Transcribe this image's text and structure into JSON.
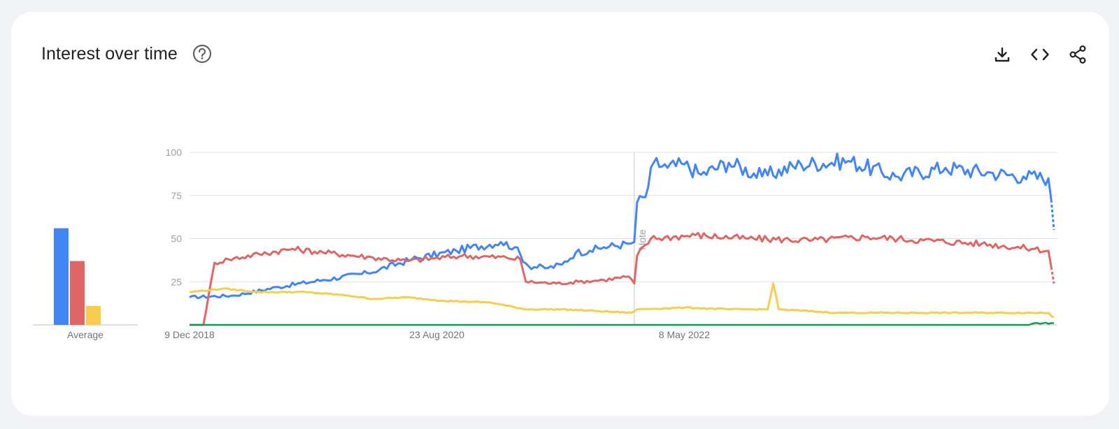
{
  "card": {
    "title": "Interest over time",
    "icons": [
      "help-icon",
      "download-icon",
      "embed-icon",
      "share-icon"
    ]
  },
  "chart_data": {
    "type": "line",
    "title": "Interest over time",
    "ylim": [
      0,
      100
    ],
    "yticks": [
      25,
      50,
      75,
      100
    ],
    "xlim": [
      "2018-12-09",
      "2024-12-01"
    ],
    "xtick_labels": [
      "9 Dec 2018",
      "23 Aug 2020",
      "8 May 2022"
    ],
    "xtick_dates": [
      "2018-12-09",
      "2020-08-23",
      "2022-05-08"
    ],
    "grid": true,
    "note": {
      "label": "Note",
      "date": "2022-01-02"
    },
    "partial_from": "2024-11-17",
    "colors": [
      "#4285f4",
      "#e06666",
      "#f6cd4f",
      "#0f9d58"
    ],
    "series": [
      {
        "color": "#4285f4",
        "points": [
          [
            "2018-12-09",
            16
          ],
          [
            "2019-03-31",
            17
          ],
          [
            "2019-07-21",
            22
          ],
          [
            "2019-11-10",
            26
          ],
          [
            "2020-03-01",
            30
          ],
          [
            "2020-06-21",
            38
          ],
          [
            "2020-10-11",
            43
          ],
          [
            "2021-01-31",
            48
          ],
          [
            "2021-03-07",
            45
          ],
          [
            "2021-04-11",
            34
          ],
          [
            "2021-05-30",
            33
          ],
          [
            "2021-07-04",
            35
          ],
          [
            "2021-08-08",
            42
          ],
          [
            "2021-09-12",
            43
          ],
          [
            "2021-10-17",
            45
          ],
          [
            "2021-12-19",
            47
          ],
          [
            "2022-01-02",
            48
          ],
          [
            "2022-01-09",
            71
          ],
          [
            "2022-01-30",
            74
          ],
          [
            "2022-02-20",
            94
          ],
          [
            "2022-03-27",
            91
          ],
          [
            "2022-05-08",
            93
          ],
          [
            "2022-06-19",
            87
          ],
          [
            "2022-08-28",
            94
          ],
          [
            "2022-11-20",
            86
          ],
          [
            "2023-02-26",
            93
          ],
          [
            "2023-06-25",
            95
          ],
          [
            "2023-10-22",
            86
          ],
          [
            "2024-02-25",
            91
          ],
          [
            "2024-06-23",
            88
          ],
          [
            "2024-09-08",
            86
          ],
          [
            "2024-11-10",
            85
          ],
          [
            "2024-11-24",
            55
          ]
        ]
      },
      {
        "color": "#e06666",
        "points": [
          [
            "2018-12-09",
            0
          ],
          [
            "2019-01-13",
            0
          ],
          [
            "2019-02-10",
            36
          ],
          [
            "2019-03-17",
            38
          ],
          [
            "2019-06-02",
            41
          ],
          [
            "2019-08-25",
            44
          ],
          [
            "2019-11-10",
            42
          ],
          [
            "2020-03-15",
            39
          ],
          [
            "2020-06-07",
            37
          ],
          [
            "2020-10-25",
            40
          ],
          [
            "2021-02-14",
            39
          ],
          [
            "2021-03-21",
            38
          ],
          [
            "2021-04-04",
            25
          ],
          [
            "2021-06-20",
            24
          ],
          [
            "2021-08-15",
            25
          ],
          [
            "2021-10-17",
            26
          ],
          [
            "2021-12-19",
            28
          ],
          [
            "2022-01-02",
            24
          ],
          [
            "2022-01-09",
            40
          ],
          [
            "2022-02-13",
            50
          ],
          [
            "2022-06-05",
            52
          ],
          [
            "2022-10-16",
            50
          ],
          [
            "2023-03-26",
            49
          ],
          [
            "2023-08-13",
            51
          ],
          [
            "2023-12-31",
            49
          ],
          [
            "2024-05-26",
            47
          ],
          [
            "2024-10-06",
            44
          ],
          [
            "2024-11-10",
            43
          ],
          [
            "2024-11-24",
            24
          ]
        ]
      },
      {
        "color": "#f6cd4f",
        "points": [
          [
            "2018-12-09",
            19
          ],
          [
            "2019-03-03",
            21
          ],
          [
            "2019-06-02",
            19
          ],
          [
            "2019-09-29",
            19
          ],
          [
            "2020-01-12",
            17
          ],
          [
            "2020-03-15",
            15
          ],
          [
            "2020-06-07",
            16
          ],
          [
            "2020-09-06",
            14
          ],
          [
            "2021-01-03",
            13
          ],
          [
            "2021-04-04",
            9
          ],
          [
            "2021-07-04",
            9
          ],
          [
            "2021-10-03",
            8
          ],
          [
            "2021-12-26",
            7
          ],
          [
            "2022-01-09",
            9
          ],
          [
            "2022-05-08",
            10
          ],
          [
            "2022-09-04",
            9
          ],
          [
            "2022-12-04",
            9
          ],
          [
            "2022-12-18",
            24
          ],
          [
            "2023-01-01",
            9
          ],
          [
            "2023-05-28",
            7
          ],
          [
            "2024-01-28",
            7
          ],
          [
            "2024-11-10",
            7
          ],
          [
            "2024-11-24",
            4
          ]
        ]
      },
      {
        "color": "#0f9d58",
        "points": [
          [
            "2018-12-09",
            0
          ],
          [
            "2024-09-22",
            0
          ],
          [
            "2024-10-06",
            1
          ],
          [
            "2024-11-24",
            1
          ]
        ]
      }
    ],
    "average": {
      "label": "Average",
      "values": [
        56,
        37,
        11,
        0
      ]
    }
  }
}
